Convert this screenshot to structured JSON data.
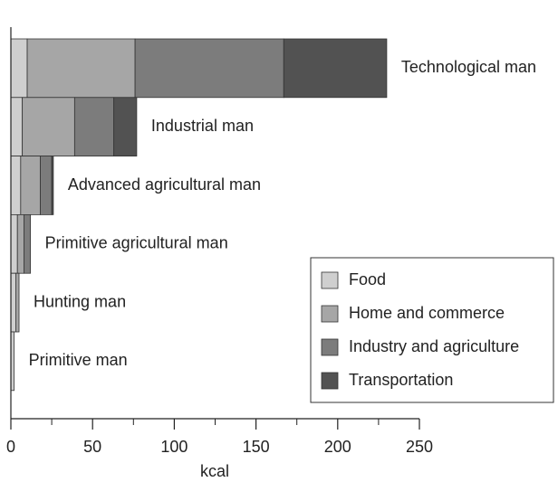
{
  "chart_data": {
    "type": "stacked_barh",
    "categories": [
      "Technological man",
      "Industrial man",
      "Advanced agricultural man",
      "Primitive agricultural man",
      "Hunting man",
      "Primitive man"
    ],
    "series": [
      {
        "name": "Food",
        "color": "#cfcfcf",
        "values": [
          10,
          7,
          6,
          4,
          3,
          2
        ]
      },
      {
        "name": "Home and commerce",
        "color": "#a6a6a6",
        "values": [
          66,
          32,
          12,
          4,
          2,
          0
        ]
      },
      {
        "name": "Industry and agriculture",
        "color": "#7c7c7c",
        "values": [
          91,
          24,
          7,
          4,
          0,
          0
        ]
      },
      {
        "name": "Transportation",
        "color": "#525252",
        "values": [
          63,
          14,
          1,
          0,
          0,
          0
        ]
      }
    ],
    "xlabel": "kcal",
    "xlim": [
      0,
      250
    ],
    "xticks": [
      0,
      50,
      100,
      150,
      200,
      250
    ],
    "xminorticks": [
      25,
      75,
      125,
      175,
      225
    ],
    "legend": "lower right"
  }
}
